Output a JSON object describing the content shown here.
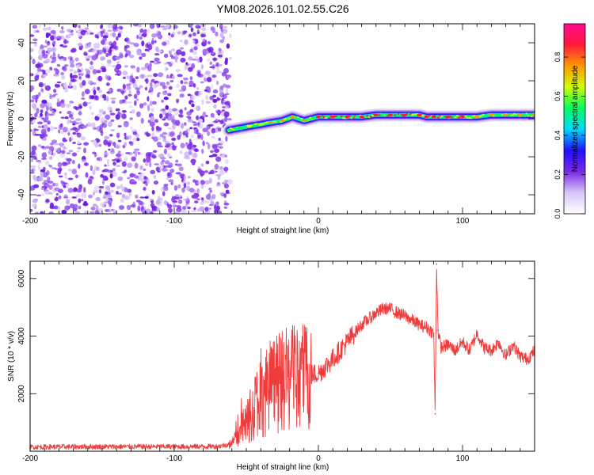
{
  "title": "YM08.2026.101.02.55.C26",
  "colors": {
    "snr_line": "#ee3b3b",
    "axis": "#000000",
    "scatter_purple": "#7a28e8",
    "colormap": [
      "#ffffff",
      "#d8c6f8",
      "#7a28e8",
      "#2010ff",
      "#00d8ff",
      "#00ff60",
      "#d0ff00",
      "#ff9900",
      "#ff1a3a",
      "#ff0a90"
    ]
  },
  "chart_data": [
    {
      "type": "heatmap",
      "title": "YM08.2026.101.02.55.C26",
      "xlabel": "Height of straight line (km)",
      "ylabel": "Frequency (Hz)",
      "xlim": [
        -200,
        150
      ],
      "ylim": [
        -50,
        50
      ],
      "xticks": [
        -200,
        -100,
        0,
        100
      ],
      "xtick_labels": [
        "-200",
        "-100",
        "0",
        "100"
      ],
      "yticks": [
        -40,
        -20,
        0,
        20,
        40
      ],
      "ytick_labels": [
        "-40",
        "-20",
        "0",
        "20",
        "40"
      ],
      "noise_region": {
        "x": [
          -200,
          -61
        ],
        "y": [
          -50,
          50
        ],
        "description": "scattered low-amplitude purple speckle"
      },
      "ridge": {
        "x": [
          -62,
          -55,
          -48,
          -40,
          -33,
          -25,
          -18,
          -10,
          0,
          10,
          20,
          30,
          40,
          50,
          60,
          70,
          75,
          80,
          90,
          100,
          110,
          120,
          130,
          140,
          150
        ],
        "frequency": [
          -6,
          -5,
          -4,
          -3,
          -2,
          -1,
          1,
          -1,
          1,
          1,
          1,
          1,
          2,
          2,
          2,
          2,
          1,
          1,
          1,
          1,
          1,
          2,
          2,
          2,
          2
        ],
        "amplitude": [
          0.5,
          0.6,
          0.7,
          0.75,
          0.8,
          0.8,
          0.85,
          0.85,
          0.9,
          0.95,
          0.9,
          0.95,
          0.95,
          0.9,
          0.95,
          0.95,
          1.0,
          0.95,
          0.95,
          0.9,
          0.85,
          0.85,
          0.85,
          0.85,
          0.85
        ]
      },
      "colorbar": {
        "label": "Normalized spectral amplitude",
        "range": [
          0.0,
          0.97
        ],
        "ticks": [
          0.0,
          0.2,
          0.4,
          0.6,
          0.8
        ],
        "tick_labels": [
          "0.0",
          "0.2",
          "0.4",
          "0.6",
          "0.8"
        ]
      }
    },
    {
      "type": "line",
      "xlabel": "Height of straight line (km)",
      "ylabel": "SNR (10 * v/v)",
      "xlim": [
        -200,
        150
      ],
      "ylim": [
        0,
        6600
      ],
      "xticks": [
        -200,
        -100,
        0,
        100
      ],
      "xtick_labels": [
        "-200",
        "-100",
        "0",
        "100"
      ],
      "yticks": [
        2000,
        4000,
        6000
      ],
      "ytick_labels": [
        "2000",
        "4000",
        "6000"
      ],
      "series": [
        {
          "name": "SNR",
          "x": [
            -200,
            -150,
            -100,
            -70,
            -60,
            -50,
            -45,
            -40,
            -30,
            -20,
            -10,
            0,
            10,
            20,
            30,
            40,
            45,
            50,
            55,
            60,
            70,
            75,
            80,
            81,
            82,
            83,
            85,
            90,
            95,
            100,
            105,
            110,
            115,
            120,
            125,
            130,
            135,
            140,
            145,
            150
          ],
          "values": [
            150,
            160,
            160,
            170,
            250,
            1000,
            1500,
            1900,
            2300,
            2500,
            2600,
            2700,
            3200,
            3800,
            4400,
            4800,
            4950,
            4950,
            4800,
            4700,
            4400,
            4300,
            4100,
            1300,
            6500,
            4200,
            3600,
            3700,
            3500,
            3800,
            3500,
            4100,
            3600,
            3500,
            3800,
            3300,
            3700,
            3300,
            3200,
            3500
          ]
        }
      ]
    }
  ]
}
